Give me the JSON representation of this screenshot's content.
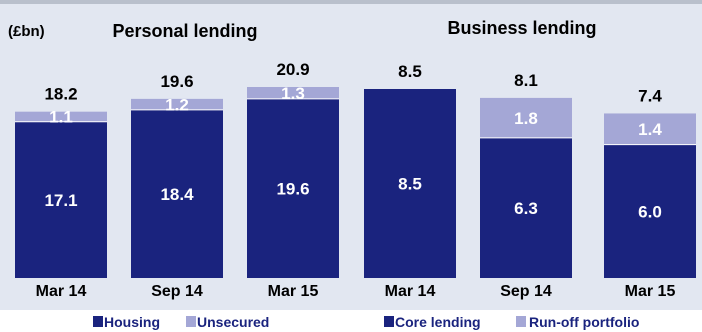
{
  "unit": "(£bn)",
  "colors": {
    "dark": "#1a237e",
    "light": "#a4a7d6",
    "divider": "#ffffff"
  },
  "chart_data": [
    {
      "type": "bar",
      "stacked": true,
      "title": "Personal lending",
      "categories": [
        "Mar 14",
        "Sep 14",
        "Mar 15"
      ],
      "series": [
        {
          "name": "Housing",
          "values": [
            17.1,
            18.4,
            19.6
          ]
        },
        {
          "name": "Unsecured",
          "values": [
            1.1,
            1.2,
            1.3
          ]
        }
      ],
      "totals": [
        18.2,
        19.6,
        20.9
      ],
      "value_labels": [
        [
          "17.1",
          "1.1"
        ],
        [
          "18.4",
          "1.2"
        ],
        [
          "19.6",
          "1.3"
        ]
      ],
      "total_labels": [
        "18.2",
        "19.6",
        "20.9"
      ],
      "legend": [
        "Housing",
        "Unsecured"
      ],
      "ylim": [
        0,
        20.9
      ],
      "legend_position": "bottom",
      "grid": false
    },
    {
      "type": "bar",
      "stacked": true,
      "title": "Business lending",
      "categories": [
        "Mar 14",
        "Sep 14",
        "Mar 15"
      ],
      "series": [
        {
          "name": "Core lending",
          "values": [
            8.5,
            6.3,
            6.0
          ]
        },
        {
          "name": "Run-off portfolio",
          "values": [
            0,
            1.8,
            1.4
          ]
        }
      ],
      "totals": [
        8.5,
        8.1,
        7.4
      ],
      "value_labels": [
        [
          "8.5",
          ""
        ],
        [
          "6.3",
          "1.8"
        ],
        [
          "6.0",
          "1.4"
        ]
      ],
      "total_labels": [
        "8.5",
        "8.1",
        "7.4"
      ],
      "legend": [
        "Core lending",
        "Run-off portfolio"
      ],
      "ylim": [
        0,
        8.5
      ],
      "legend_position": "bottom",
      "grid": false
    }
  ]
}
